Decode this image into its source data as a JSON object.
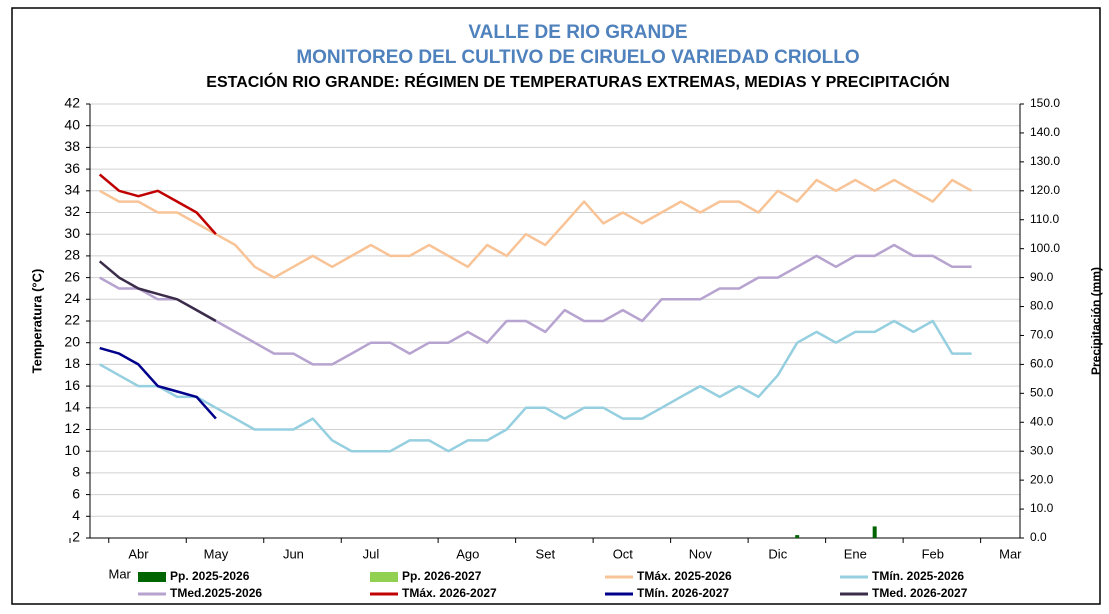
{
  "chart_data": {
    "type": "line",
    "title": "VALLE DE RIO GRANDE",
    "subtitle": "MONITOREO DEL CULTIVO DE CIRUELO VARIEDAD CRIOLLO",
    "chart_subtitle": "ESTACIÓN RIO GRANDE: RÉGIMEN DE TEMPERATURAS EXTREMAS, MEDIAS Y PRECIPITACIÓN",
    "y_label": "Temperatura (°C)",
    "y2_label": "Precipitación (mm)",
    "categories": [
      "Mar",
      null,
      "Abr",
      null,
      null,
      null,
      "May",
      null,
      null,
      null,
      "Jun",
      null,
      null,
      null,
      "Jul",
      null,
      null,
      null,
      null,
      "Ago",
      null,
      null,
      null,
      "Set",
      null,
      null,
      null,
      "Oct",
      null,
      null,
      null,
      "Nov",
      null,
      null,
      null,
      "Dic",
      null,
      null,
      null,
      "Ene",
      null,
      null,
      null,
      "Feb",
      null,
      null,
      null,
      "Mar"
    ],
    "ylim": [
      2,
      42
    ],
    "yticks": [
      2,
      4,
      6,
      8,
      10,
      12,
      14,
      16,
      18,
      20,
      22,
      24,
      26,
      28,
      30,
      32,
      34,
      36,
      38,
      40,
      42
    ],
    "y2lim": [
      0,
      150
    ],
    "y2ticks": [
      {
        "value": 0,
        "label": "0.0"
      },
      {
        "value": 10,
        "label": "10.0"
      },
      {
        "value": 20,
        "label": "20.0"
      },
      {
        "value": 30,
        "label": "30.0"
      },
      {
        "value": 40,
        "label": "40.0"
      },
      {
        "value": 50,
        "label": "50.0"
      },
      {
        "value": 60,
        "label": "60.0"
      },
      {
        "value": 70,
        "label": "70.0"
      },
      {
        "value": 80,
        "label": "80.0"
      },
      {
        "value": 90,
        "label": "90.0"
      },
      {
        "value": 100,
        "label": "100.0"
      },
      {
        "value": 110,
        "label": "110.0"
      },
      {
        "value": 120,
        "label": "120.0"
      },
      {
        "value": 130,
        "label": "130.0"
      },
      {
        "value": 140,
        "label": "140.0"
      },
      {
        "value": 150,
        "label": "150.0"
      }
    ],
    "grid": true,
    "series": [
      {
        "name": "Pp. 2025-2026",
        "color": "#006400",
        "type": "bar",
        "axis": "y2",
        "values": [
          0,
          0,
          0,
          0,
          0,
          0,
          0,
          0,
          0,
          0,
          0,
          0,
          0,
          0,
          0,
          0,
          0,
          0,
          0,
          0,
          0,
          0,
          0,
          0,
          0,
          0,
          0,
          0,
          0,
          0,
          0,
          0,
          0,
          0,
          0,
          0,
          1,
          0,
          0,
          0,
          4,
          0,
          0,
          0,
          0,
          0,
          null,
          null
        ]
      },
      {
        "name": "Pp. 2026-2027",
        "color": "#92d050",
        "type": "bar",
        "axis": "y2",
        "values": [
          0,
          0,
          0,
          0,
          0,
          0,
          0,
          null,
          null,
          null,
          null,
          null,
          null,
          null,
          null,
          null,
          null,
          null,
          null,
          null,
          null,
          null,
          null,
          null,
          null,
          null,
          null,
          null,
          null,
          null,
          null,
          null,
          null,
          null,
          null,
          null,
          null,
          null,
          null,
          null,
          null,
          null,
          null,
          null,
          null,
          null,
          null,
          null
        ]
      },
      {
        "name": "TMáx. 2025-2026",
        "color": "#f8c497",
        "type": "line",
        "values": [
          34,
          33,
          33,
          32,
          32,
          31,
          30,
          29,
          27,
          26,
          27,
          28,
          27,
          28,
          29,
          28,
          28,
          29,
          28,
          27,
          29,
          28,
          30,
          29,
          31,
          33,
          31,
          32,
          31,
          32,
          33,
          32,
          33,
          33,
          32,
          34,
          33,
          35,
          34,
          35,
          34,
          35,
          34,
          33,
          35,
          34,
          null,
          null
        ]
      },
      {
        "name": "TMín. 2025-2026",
        "color": "#95cfe0",
        "type": "line",
        "values": [
          18,
          17,
          16,
          16,
          15,
          15,
          14,
          13,
          12,
          12,
          12,
          13,
          11,
          10,
          10,
          10,
          11,
          11,
          10,
          11,
          11,
          12,
          14,
          14,
          13,
          14,
          14,
          13,
          13,
          14,
          15,
          16,
          15,
          16,
          15,
          17,
          20,
          21,
          20,
          21,
          21,
          22,
          21,
          22,
          19,
          19,
          null,
          null
        ]
      },
      {
        "name": "TMed.2025-2026",
        "color": "#b7a3cf",
        "type": "line",
        "values": [
          26,
          25,
          25,
          24,
          24,
          23,
          22,
          21,
          20,
          19,
          19,
          18,
          18,
          19,
          20,
          20,
          19,
          20,
          20,
          21,
          20,
          22,
          22,
          21,
          23,
          22,
          22,
          23,
          22,
          24,
          24,
          24,
          25,
          25,
          26,
          26,
          27,
          28,
          27,
          28,
          28,
          29,
          28,
          28,
          27,
          27,
          null,
          null
        ]
      },
      {
        "name": "TMáx. 2026-2027",
        "color": "#c00000",
        "type": "line",
        "values": [
          35.5,
          34,
          33.5,
          34,
          33,
          32,
          30,
          null,
          null,
          null,
          null,
          null,
          null,
          null,
          null,
          null,
          null,
          null,
          null,
          null,
          null,
          null,
          null,
          null,
          null,
          null,
          null,
          null,
          null,
          null,
          null,
          null,
          null,
          null,
          null,
          null,
          null,
          null,
          null,
          null,
          null,
          null,
          null,
          null,
          null,
          null,
          null,
          null
        ]
      },
      {
        "name": "TMín. 2026-2027",
        "color": "#00008b",
        "type": "line",
        "values": [
          19.5,
          19,
          18,
          16,
          15.5,
          15,
          13,
          null,
          null,
          null,
          null,
          null,
          null,
          null,
          null,
          null,
          null,
          null,
          null,
          null,
          null,
          null,
          null,
          null,
          null,
          null,
          null,
          null,
          null,
          null,
          null,
          null,
          null,
          null,
          null,
          null,
          null,
          null,
          null,
          null,
          null,
          null,
          null,
          null,
          null,
          null,
          null,
          null
        ]
      },
      {
        "name": "TMed. 2026-2027",
        "color": "#3b2c4a",
        "type": "line",
        "values": [
          27.5,
          26,
          25,
          24.5,
          24,
          23,
          22,
          null,
          null,
          null,
          null,
          null,
          null,
          null,
          null,
          null,
          null,
          null,
          null,
          null,
          null,
          null,
          null,
          null,
          null,
          null,
          null,
          null,
          null,
          null,
          null,
          null,
          null,
          null,
          null,
          null,
          null,
          null,
          null,
          null,
          null,
          null,
          null,
          null,
          null,
          null,
          null,
          null
        ]
      }
    ]
  }
}
